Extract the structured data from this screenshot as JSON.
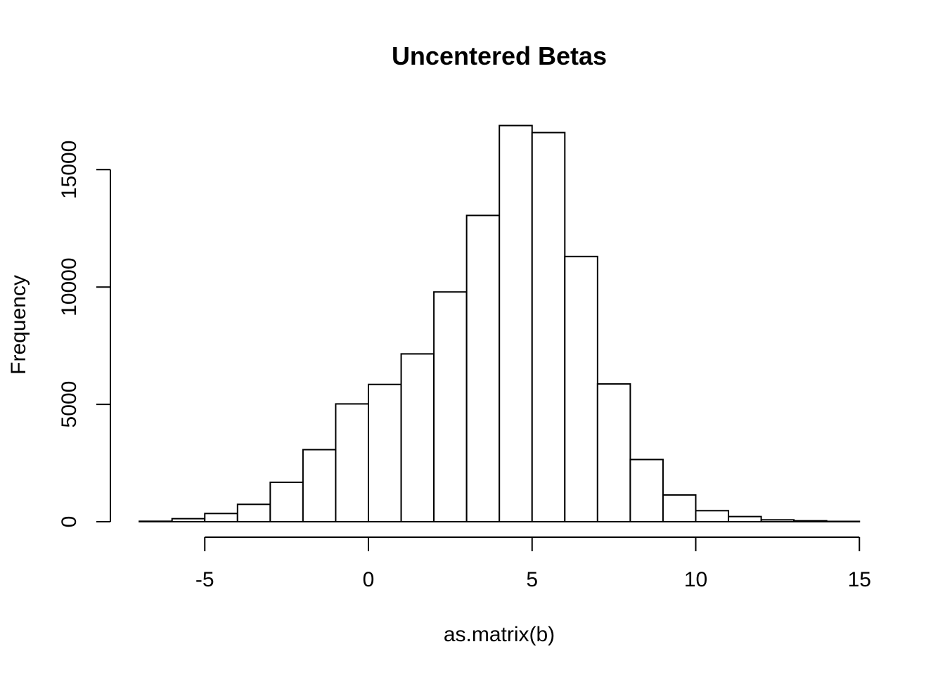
{
  "chart_data": {
    "type": "bar",
    "title": "Uncentered Betas",
    "xlabel": "as.matrix(b)",
    "ylabel": "Frequency",
    "bins": [
      {
        "x0": -7,
        "x1": -6,
        "count": 20
      },
      {
        "x0": -6,
        "x1": -5,
        "count": 130
      },
      {
        "x0": -5,
        "x1": -4,
        "count": 350
      },
      {
        "x0": -4,
        "x1": -3,
        "count": 740
      },
      {
        "x0": -3,
        "x1": -2,
        "count": 1680
      },
      {
        "x0": -2,
        "x1": -1,
        "count": 3070
      },
      {
        "x0": -1,
        "x1": 0,
        "count": 5020
      },
      {
        "x0": 0,
        "x1": 1,
        "count": 5850
      },
      {
        "x0": 1,
        "x1": 2,
        "count": 7150
      },
      {
        "x0": 2,
        "x1": 3,
        "count": 9790
      },
      {
        "x0": 3,
        "x1": 4,
        "count": 13050
      },
      {
        "x0": 4,
        "x1": 5,
        "count": 16880
      },
      {
        "x0": 5,
        "x1": 6,
        "count": 16580
      },
      {
        "x0": 6,
        "x1": 7,
        "count": 11300
      },
      {
        "x0": 7,
        "x1": 8,
        "count": 5870
      },
      {
        "x0": 8,
        "x1": 9,
        "count": 2650
      },
      {
        "x0": 9,
        "x1": 10,
        "count": 1140
      },
      {
        "x0": 10,
        "x1": 11,
        "count": 470
      },
      {
        "x0": 11,
        "x1": 12,
        "count": 220
      },
      {
        "x0": 12,
        "x1": 13,
        "count": 80
      },
      {
        "x0": 13,
        "x1": 14,
        "count": 40
      },
      {
        "x0": 14,
        "x1": 15,
        "count": 15
      }
    ],
    "xticks": [
      -5,
      0,
      5,
      10,
      15
    ],
    "xtick_labels": [
      "-5",
      "0",
      "5",
      "10",
      "15"
    ],
    "yticks": [
      0,
      5000,
      10000,
      15000
    ],
    "ytick_labels": [
      "0",
      "5000",
      "10000",
      "15000"
    ],
    "xlim": [
      -7,
      15
    ],
    "ylim": [
      0,
      15000
    ],
    "grid": false,
    "bar_fill": "#ffffff",
    "bar_stroke": "#000000"
  }
}
